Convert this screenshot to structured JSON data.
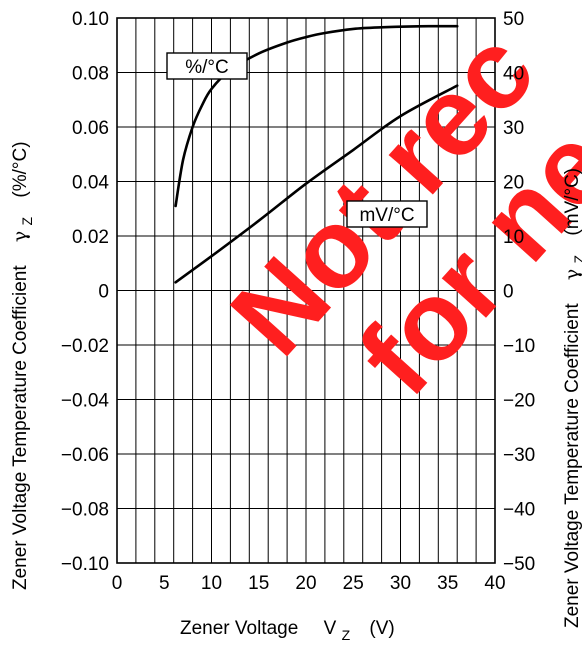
{
  "chart_data": {
    "type": "line",
    "x_axis": {
      "label": "Zener Voltage",
      "symbol": "V",
      "subscript": "Z",
      "unit": "(V)",
      "range": [
        0,
        40
      ],
      "ticks": [
        0,
        5,
        10,
        15,
        20,
        25,
        30,
        35,
        40
      ]
    },
    "y_left": {
      "label": "Zener Voltage Temperature Coefficient",
      "symbol": "γ",
      "subscript": "Z",
      "unit": "(%/°C)",
      "range": [
        -0.1,
        0.1
      ],
      "tick_values": [
        0.1,
        0.08,
        0.06,
        0.04,
        0.02,
        0,
        -0.02,
        -0.04,
        -0.06,
        -0.08,
        -0.1
      ],
      "tick_labels": [
        "0.10",
        "0.08",
        "0.06",
        "0.04",
        "0.02",
        "0",
        "−0.02",
        "−0.04",
        "−0.06",
        "−0.08",
        "−0.10"
      ]
    },
    "y_right": {
      "label": "Zener Voltage Temperature Coefficient",
      "symbol": "γ",
      "subscript": "Z",
      "unit": "(mV/°C)",
      "range": [
        -50,
        50
      ],
      "tick_values": [
        50,
        40,
        30,
        20,
        10,
        0,
        -10,
        -20,
        -30,
        -40,
        -50
      ],
      "tick_labels": [
        "50",
        "40",
        "30",
        "20",
        "10",
        "0",
        "−10",
        "−20",
        "−30",
        "−40",
        "−50"
      ]
    },
    "grid": true,
    "vertical_grid_step": 2,
    "horizontal_grid_step": 0.02,
    "series": [
      {
        "name": "%/°C",
        "axis": "left",
        "x": [
          6.2,
          7,
          8,
          9,
          10,
          12,
          15,
          18,
          20,
          22,
          25,
          28,
          30,
          33,
          36
        ],
        "y": [
          0.031,
          0.048,
          0.06,
          0.068,
          0.074,
          0.081,
          0.087,
          0.091,
          0.093,
          0.0945,
          0.096,
          0.0966,
          0.0968,
          0.097,
          0.097
        ]
      },
      {
        "name": "mV/°C",
        "axis": "right",
        "x": [
          6.2,
          10,
          15,
          20,
          25,
          30,
          36
        ],
        "y": [
          1.5,
          6.3,
          12.8,
          19.6,
          25.8,
          32.0,
          37.6
        ]
      }
    ],
    "watermark": {
      "line1": "Not rec",
      "line2": "for ne",
      "color": "#ff1f1f"
    }
  }
}
